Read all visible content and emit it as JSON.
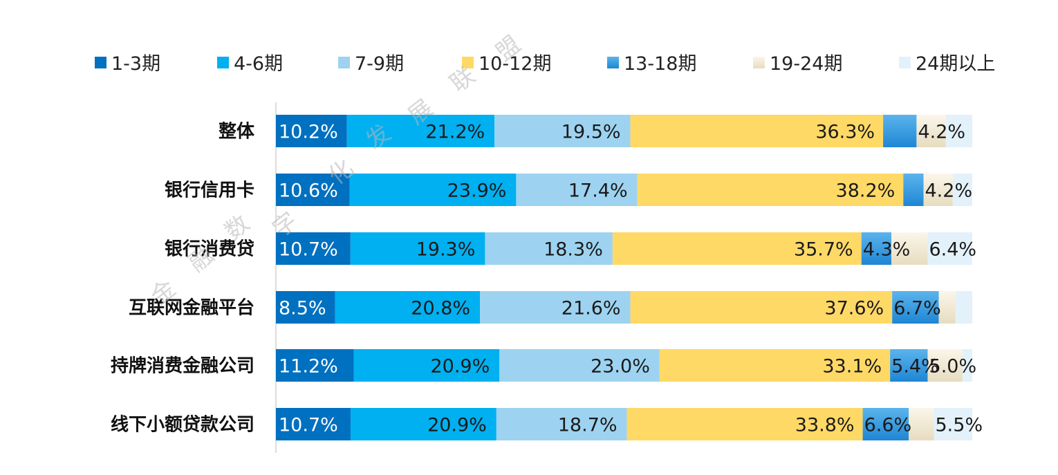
{
  "watermark": [
    "金",
    "融",
    "数",
    "字",
    "化",
    "发",
    "展",
    "联",
    "盟"
  ],
  "chart_data": {
    "type": "bar",
    "orientation": "horizontal",
    "stacked": "100%",
    "legend_position": "top",
    "categories": [
      "整体",
      "银行信用卡",
      "银行消费贷",
      "互联网金融平台",
      "持牌消费金融公司",
      "线下小额贷款公司"
    ],
    "series": [
      {
        "name": "1-3期",
        "color": "#0070C0",
        "values": [
          10.2,
          10.6,
          10.7,
          8.5,
          11.2,
          10.7
        ],
        "labels": [
          "10.2%",
          "10.6%",
          "10.7%",
          "8.5%",
          "11.2%",
          "10.7%"
        ]
      },
      {
        "name": "4-6期",
        "color": "#00B0F0",
        "values": [
          21.2,
          23.9,
          19.3,
          20.8,
          20.9,
          20.9
        ],
        "labels": [
          "21.2%",
          "23.9%",
          "19.3%",
          "20.8%",
          "20.9%",
          "20.9%"
        ]
      },
      {
        "name": "7-9期",
        "color": "#9DD3F0",
        "values": [
          19.5,
          17.4,
          18.3,
          21.6,
          23.0,
          18.7
        ],
        "labels": [
          "19.5%",
          "17.4%",
          "18.3%",
          "21.6%",
          "23.0%",
          "18.7%"
        ]
      },
      {
        "name": "10-12期",
        "color": "#FFD966",
        "values": [
          36.3,
          38.2,
          35.7,
          37.6,
          33.1,
          33.8
        ],
        "labels": [
          "36.3%",
          "38.2%",
          "35.7%",
          "37.6%",
          "33.1%",
          "33.8%"
        ]
      },
      {
        "name": "13-18期",
        "color": "#3A9FE0",
        "values": [
          4.8,
          2.9,
          4.3,
          6.7,
          5.4,
          6.6
        ],
        "labels": [
          "",
          "",
          "4.3%",
          "6.7%",
          "5.4%",
          "6.6%"
        ]
      },
      {
        "name": "19-24期",
        "color": "#F3EAD6",
        "values": [
          4.2,
          4.2,
          5.2,
          2.4,
          5.0,
          3.6
        ],
        "labels": [
          "4.2%",
          "4.2%",
          "",
          "",
          "5.0%",
          ""
        ]
      },
      {
        "name": "24期以上",
        "color": "#E3F1FA",
        "values": [
          3.8,
          2.8,
          6.4,
          2.4,
          1.4,
          5.5
        ],
        "labels": [
          "",
          "",
          "6.4%",
          "",
          "",
          "5.5%"
        ]
      }
    ],
    "xlim": [
      0,
      100
    ],
    "grid": false
  }
}
